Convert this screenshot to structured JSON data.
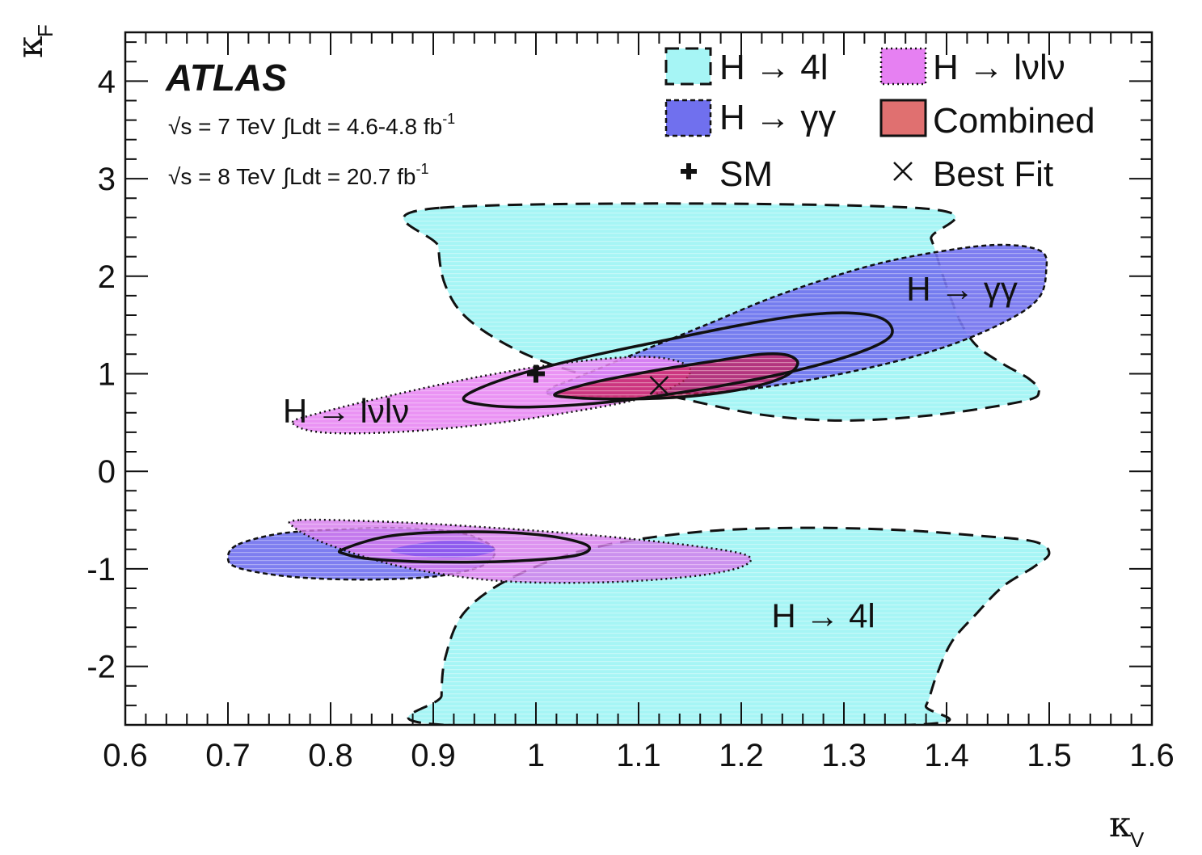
{
  "chart_data": {
    "type": "contour",
    "xlabel": "κ",
    "xlabel_sub": "V",
    "ylabel": "κ",
    "ylabel_sub": "F",
    "xlim": [
      0.6,
      1.6
    ],
    "ylim": [
      -2.6,
      4.5
    ],
    "x_ticks": [
      0.6,
      0.7,
      0.8,
      0.9,
      1.0,
      1.1,
      1.2,
      1.3,
      1.4,
      1.5,
      1.6
    ],
    "x_tick_labels": [
      "0.6",
      "0.7",
      "0.8",
      "0.9",
      "1",
      "1.1",
      "1.2",
      "1.3",
      "1.4",
      "1.5",
      "1.6"
    ],
    "y_ticks": [
      -2,
      -1,
      0,
      1,
      2,
      3,
      4
    ],
    "y_tick_labels": [
      "-2",
      "-1",
      "0",
      "1",
      "2",
      "3",
      "4"
    ],
    "experiment": "ATLAS",
    "energy_lines": [
      {
        "sqrt_s": "√s = 7 TeV",
        "lumi": "∫Ldt = 4.6-4.8 fb",
        "lumi_exp": "-1"
      },
      {
        "sqrt_s": "√s = 8 TeV",
        "lumi": "∫Ldt = 20.7 fb",
        "lumi_exp": "-1"
      }
    ],
    "legend_position": "top-right",
    "legend": [
      {
        "label": "H → 4l",
        "color": "#a6f5f5",
        "line": "dashed"
      },
      {
        "label": "H → lνlν",
        "color": "#e680f2",
        "line": "dotted"
      },
      {
        "label": "H → γγ",
        "color": "#7070ee",
        "line": "dashed-fine"
      },
      {
        "label": "Combined",
        "color": "#e07070",
        "line": "solid"
      },
      {
        "label": "SM",
        "marker": "plus"
      },
      {
        "label": "Best Fit",
        "marker": "cross"
      }
    ],
    "markers": {
      "sm": {
        "x": 1.0,
        "y": 1.0
      },
      "best_fit": {
        "x": 1.12,
        "y": 0.88
      }
    },
    "region_labels": [
      {
        "text": "H → γγ",
        "x": 1.415,
        "y": 1.75
      },
      {
        "text": "H → lνlν",
        "x": 0.815,
        "y": 0.5
      },
      {
        "text": "H → 4l",
        "x": 1.28,
        "y": -1.6
      }
    ],
    "contours": {
      "h4l_upper": [
        [
          0.906,
          2.7
        ],
        [
          0.905,
          2.3
        ],
        [
          0.912,
          1.9
        ],
        [
          0.935,
          1.55
        ],
        [
          0.99,
          1.2
        ],
        [
          1.06,
          0.95
        ],
        [
          1.14,
          0.75
        ],
        [
          1.22,
          0.58
        ],
        [
          1.3,
          0.52
        ],
        [
          1.39,
          0.58
        ],
        [
          1.475,
          0.72
        ],
        [
          1.49,
          0.82
        ],
        [
          1.48,
          0.95
        ],
        [
          1.455,
          1.1
        ],
        [
          1.43,
          1.28
        ],
        [
          1.415,
          1.5
        ],
        [
          1.405,
          1.75
        ],
        [
          1.395,
          2.05
        ],
        [
          1.385,
          2.38
        ],
        [
          1.37,
          2.7
        ]
      ],
      "h4l_lower": [
        [
          0.91,
          -2.6
        ],
        [
          0.908,
          -2.3
        ],
        [
          0.912,
          -1.9
        ],
        [
          0.93,
          -1.45
        ],
        [
          0.975,
          -1.1
        ],
        [
          1.05,
          -0.8
        ],
        [
          1.15,
          -0.63
        ],
        [
          1.25,
          -0.58
        ],
        [
          1.35,
          -0.6
        ],
        [
          1.43,
          -0.66
        ],
        [
          1.485,
          -0.72
        ],
        [
          1.5,
          -0.84
        ],
        [
          1.485,
          -0.98
        ],
        [
          1.455,
          -1.18
        ],
        [
          1.43,
          -1.45
        ],
        [
          1.405,
          -1.75
        ],
        [
          1.39,
          -2.1
        ],
        [
          1.38,
          -2.4
        ],
        [
          1.365,
          -2.6
        ]
      ],
      "hgg_upper": [
        [
          1.02,
          0.78
        ],
        [
          1.12,
          0.78
        ],
        [
          1.22,
          0.86
        ],
        [
          1.32,
          1.05
        ],
        [
          1.4,
          1.28
        ],
        [
          1.46,
          1.55
        ],
        [
          1.49,
          1.78
        ],
        [
          1.497,
          2.05
        ],
        [
          1.493,
          2.25
        ],
        [
          1.46,
          2.32
        ],
        [
          1.41,
          2.28
        ],
        [
          1.33,
          2.12
        ],
        [
          1.24,
          1.82
        ],
        [
          1.17,
          1.52
        ],
        [
          1.1,
          1.22
        ],
        [
          1.04,
          0.96
        ],
        [
          1.015,
          0.85
        ]
      ],
      "hgg_lower": [
        [
          0.71,
          -0.75
        ],
        [
          0.75,
          -0.64
        ],
        [
          0.8,
          -0.6
        ],
        [
          0.86,
          -0.58
        ],
        [
          0.92,
          -0.62
        ],
        [
          0.95,
          -0.72
        ],
        [
          0.96,
          -0.84
        ],
        [
          0.945,
          -0.98
        ],
        [
          0.9,
          -1.08
        ],
        [
          0.83,
          -1.11
        ],
        [
          0.76,
          -1.08
        ],
        [
          0.71,
          -0.99
        ],
        [
          0.7,
          -0.88
        ]
      ],
      "hww_upper": [
        [
          0.763,
          0.5
        ],
        [
          0.79,
          0.6
        ],
        [
          0.86,
          0.78
        ],
        [
          0.94,
          0.96
        ],
        [
          1.02,
          1.1
        ],
        [
          1.09,
          1.17
        ],
        [
          1.13,
          1.15
        ],
        [
          1.15,
          1.05
        ],
        [
          1.14,
          0.9
        ],
        [
          1.1,
          0.74
        ],
        [
          1.03,
          0.6
        ],
        [
          0.95,
          0.48
        ],
        [
          0.86,
          0.4
        ],
        [
          0.79,
          0.4
        ]
      ],
      "hww_lower": [
        [
          0.77,
          -0.5
        ],
        [
          0.86,
          -0.52
        ],
        [
          0.96,
          -0.58
        ],
        [
          1.06,
          -0.66
        ],
        [
          1.15,
          -0.76
        ],
        [
          1.205,
          -0.86
        ],
        [
          1.2,
          -0.98
        ],
        [
          1.15,
          -1.08
        ],
        [
          1.06,
          -1.14
        ],
        [
          0.96,
          -1.12
        ],
        [
          0.87,
          -0.98
        ],
        [
          0.8,
          -0.76
        ],
        [
          0.765,
          -0.58
        ]
      ],
      "comb68": [
        [
          1.02,
          0.8
        ],
        [
          1.06,
          0.92
        ],
        [
          1.12,
          1.04
        ],
        [
          1.18,
          1.14
        ],
        [
          1.22,
          1.2
        ],
        [
          1.245,
          1.19
        ],
        [
          1.255,
          1.1
        ],
        [
          1.24,
          0.96
        ],
        [
          1.2,
          0.84
        ],
        [
          1.14,
          0.76
        ],
        [
          1.08,
          0.74
        ],
        [
          1.03,
          0.76
        ]
      ],
      "comb95": [
        [
          0.93,
          0.76
        ],
        [
          0.97,
          0.95
        ],
        [
          1.04,
          1.15
        ],
        [
          1.12,
          1.33
        ],
        [
          1.2,
          1.5
        ],
        [
          1.26,
          1.6
        ],
        [
          1.31,
          1.62
        ],
        [
          1.34,
          1.55
        ],
        [
          1.345,
          1.38
        ],
        [
          1.31,
          1.2
        ],
        [
          1.24,
          1.0
        ],
        [
          1.16,
          0.84
        ],
        [
          1.08,
          0.72
        ],
        [
          1.0,
          0.66
        ],
        [
          0.95,
          0.68
        ]
      ],
      "comb95_lower": [
        [
          0.812,
          -0.8
        ],
        [
          0.86,
          -0.66
        ],
        [
          0.94,
          -0.62
        ],
        [
          1.01,
          -0.66
        ],
        [
          1.05,
          -0.76
        ],
        [
          1.04,
          -0.86
        ],
        [
          0.98,
          -0.92
        ],
        [
          0.9,
          -0.93
        ],
        [
          0.84,
          -0.9
        ],
        [
          0.815,
          -0.85
        ]
      ],
      "comb68_lower": [
        [
          0.86,
          -0.8
        ],
        [
          0.9,
          -0.72
        ],
        [
          0.94,
          -0.72
        ],
        [
          0.96,
          -0.8
        ],
        [
          0.94,
          -0.87
        ],
        [
          0.9,
          -0.88
        ],
        [
          0.87,
          -0.85
        ]
      ]
    }
  }
}
